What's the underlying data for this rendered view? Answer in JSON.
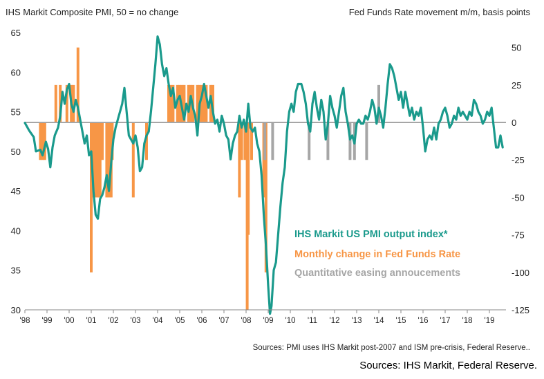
{
  "chart_data": {
    "type": "line",
    "left_axis_title": "IHS Markit  Composite PMI, 50 = no change",
    "right_axis_title": "Fed Funds Rate movement m/m, basis points",
    "left_ylim": [
      30,
      65
    ],
    "left_ticks": [
      "65",
      "60",
      "55",
      "50",
      "45",
      "40",
      "35",
      "30"
    ],
    "right_ylim": [
      -125,
      60
    ],
    "right_ticks": [
      "50",
      "25",
      "0",
      "-25",
      "-50",
      "-75",
      "-100",
      "-125"
    ],
    "x_ticks": [
      "'98",
      "'99",
      "'00",
      "'01",
      "'02",
      "'03",
      "'04",
      "'05",
      "'06",
      "'07",
      "'08",
      "'09",
      "'10",
      "'11",
      "'12",
      "'13",
      "'14",
      "'15",
      "'16",
      "'17",
      "'18",
      "'19"
    ],
    "xlim": [
      1998,
      2019.75
    ],
    "colors": {
      "pmi": "#1a9a8c",
      "fed": "#f79646",
      "qe": "#a6a6a6",
      "zero": "#a6a6a6"
    },
    "legend": [
      {
        "label": "IHS Markit US PMI  output  index*",
        "color": "#1a9a8c"
      },
      {
        "label": "Monthly change in Fed Funds Rate",
        "color": "#f79646"
      },
      {
        "label": "Quantitative easing annoucements",
        "color": "#a6a6a6"
      }
    ],
    "series": [
      {
        "name": "IHS Markit US PMI  output  index*",
        "axis": "left",
        "points": [
          [
            1998.0,
            53.6
          ],
          [
            1998.2,
            52.6
          ],
          [
            1998.4,
            51.8
          ],
          [
            1998.5,
            50.0
          ],
          [
            1998.7,
            50.2
          ],
          [
            1998.8,
            49.5
          ],
          [
            1998.95,
            51.2
          ],
          [
            1999.05,
            50.3
          ],
          [
            1999.15,
            48.0
          ],
          [
            1999.25,
            50.5
          ],
          [
            1999.35,
            52.0
          ],
          [
            1999.5,
            53.0
          ],
          [
            1999.6,
            54.5
          ],
          [
            1999.7,
            57.5
          ],
          [
            1999.8,
            56.0
          ],
          [
            1999.9,
            57.8
          ],
          [
            2000.0,
            58.5
          ],
          [
            2000.1,
            56.0
          ],
          [
            2000.2,
            55.0
          ],
          [
            2000.3,
            56.5
          ],
          [
            2000.4,
            55.5
          ],
          [
            2000.5,
            54.0
          ],
          [
            2000.6,
            52.5
          ],
          [
            2000.7,
            51.0
          ],
          [
            2000.8,
            52.0
          ],
          [
            2000.9,
            49.5
          ],
          [
            2001.0,
            50.0
          ],
          [
            2001.1,
            45.0
          ],
          [
            2001.2,
            42.0
          ],
          [
            2001.3,
            41.5
          ],
          [
            2001.4,
            44.0
          ],
          [
            2001.5,
            44.5
          ],
          [
            2001.6,
            45.5
          ],
          [
            2001.7,
            47.0
          ],
          [
            2001.8,
            45.0
          ],
          [
            2001.9,
            48.5
          ],
          [
            2002.0,
            51.5
          ],
          [
            2002.1,
            53.0
          ],
          [
            2002.2,
            54.0
          ],
          [
            2002.3,
            55.0
          ],
          [
            2002.4,
            56.0
          ],
          [
            2002.5,
            58.0
          ],
          [
            2002.6,
            55.0
          ],
          [
            2002.7,
            52.0
          ],
          [
            2002.8,
            51.5
          ],
          [
            2002.9,
            51.0
          ],
          [
            2003.0,
            52.0
          ],
          [
            2003.1,
            50.5
          ],
          [
            2003.2,
            47.5
          ],
          [
            2003.3,
            48.0
          ],
          [
            2003.4,
            51.0
          ],
          [
            2003.5,
            52.0
          ],
          [
            2003.6,
            52.5
          ],
          [
            2003.7,
            55.0
          ],
          [
            2003.8,
            58.0
          ],
          [
            2003.9,
            61.0
          ],
          [
            2004.0,
            64.5
          ],
          [
            2004.1,
            63.5
          ],
          [
            2004.2,
            61.0
          ],
          [
            2004.3,
            59.5
          ],
          [
            2004.4,
            60.5
          ],
          [
            2004.5,
            58.5
          ],
          [
            2004.6,
            57.0
          ],
          [
            2004.7,
            58.0
          ],
          [
            2004.8,
            55.5
          ],
          [
            2004.9,
            56.5
          ],
          [
            2005.0,
            57.0
          ],
          [
            2005.1,
            55.5
          ],
          [
            2005.2,
            54.0
          ],
          [
            2005.3,
            56.0
          ],
          [
            2005.4,
            55.0
          ],
          [
            2005.5,
            57.0
          ],
          [
            2005.6,
            55.5
          ],
          [
            2005.7,
            54.5
          ],
          [
            2005.8,
            52.0
          ],
          [
            2005.9,
            56.0
          ],
          [
            2006.0,
            57.0
          ],
          [
            2006.1,
            58.5
          ],
          [
            2006.2,
            57.0
          ],
          [
            2006.3,
            55.5
          ],
          [
            2006.4,
            57.0
          ],
          [
            2006.5,
            55.0
          ],
          [
            2006.6,
            53.5
          ],
          [
            2006.7,
            54.0
          ],
          [
            2006.8,
            52.5
          ],
          [
            2006.9,
            54.5
          ],
          [
            2007.0,
            53.5
          ],
          [
            2007.1,
            52.0
          ],
          [
            2007.2,
            51.5
          ],
          [
            2007.3,
            49.0
          ],
          [
            2007.4,
            51.0
          ],
          [
            2007.5,
            52.0
          ],
          [
            2007.6,
            52.5
          ],
          [
            2007.7,
            54.5
          ],
          [
            2007.8,
            53.0
          ],
          [
            2007.9,
            54.0
          ],
          [
            2008.0,
            52.5
          ],
          [
            2008.1,
            56.0
          ],
          [
            2008.2,
            53.0
          ],
          [
            2008.3,
            52.5
          ],
          [
            2008.4,
            53.0
          ],
          [
            2008.5,
            51.0
          ],
          [
            2008.6,
            50.0
          ],
          [
            2008.7,
            47.0
          ],
          [
            2008.8,
            42.0
          ],
          [
            2008.9,
            38.0
          ],
          [
            2009.0,
            33.0
          ],
          [
            2009.08,
            29.5
          ],
          [
            2009.15,
            30.5
          ],
          [
            2009.25,
            35.0
          ],
          [
            2009.35,
            36.0
          ],
          [
            2009.45,
            39.5
          ],
          [
            2009.55,
            43.0
          ],
          [
            2009.65,
            46.0
          ],
          [
            2009.75,
            48.0
          ],
          [
            2009.85,
            52.5
          ],
          [
            2009.95,
            55.0
          ],
          [
            2010.05,
            56.0
          ],
          [
            2010.15,
            55.0
          ],
          [
            2010.25,
            57.5
          ],
          [
            2010.35,
            58.5
          ],
          [
            2010.5,
            58.5
          ],
          [
            2010.6,
            57.5
          ],
          [
            2010.7,
            56.0
          ],
          [
            2010.8,
            53.5
          ],
          [
            2010.9,
            52.5
          ],
          [
            2011.0,
            56.0
          ],
          [
            2011.1,
            57.5
          ],
          [
            2011.2,
            55.5
          ],
          [
            2011.3,
            54.0
          ],
          [
            2011.4,
            56.5
          ],
          [
            2011.5,
            55.0
          ],
          [
            2011.6,
            51.5
          ],
          [
            2011.7,
            53.5
          ],
          [
            2011.8,
            57.0
          ],
          [
            2011.9,
            55.5
          ],
          [
            2012.0,
            54.5
          ],
          [
            2012.1,
            53.0
          ],
          [
            2012.2,
            55.0
          ],
          [
            2012.3,
            57.0
          ],
          [
            2012.4,
            58.0
          ],
          [
            2012.5,
            55.0
          ],
          [
            2012.6,
            53.5
          ],
          [
            2012.7,
            51.5
          ],
          [
            2012.8,
            52.0
          ],
          [
            2012.9,
            51.0
          ],
          [
            2013.0,
            53.5
          ],
          [
            2013.1,
            54.0
          ],
          [
            2013.2,
            53.5
          ],
          [
            2013.3,
            53.5
          ],
          [
            2013.4,
            54.5
          ],
          [
            2013.5,
            54.0
          ],
          [
            2013.6,
            55.0
          ],
          [
            2013.7,
            56.5
          ],
          [
            2013.8,
            55.5
          ],
          [
            2013.9,
            53.5
          ],
          [
            2014.0,
            55.5
          ],
          [
            2014.1,
            54.5
          ],
          [
            2014.2,
            53.0
          ],
          [
            2014.3,
            55.5
          ],
          [
            2014.4,
            58.5
          ],
          [
            2014.5,
            61.0
          ],
          [
            2014.6,
            60.5
          ],
          [
            2014.7,
            59.5
          ],
          [
            2014.8,
            58.0
          ],
          [
            2014.9,
            56.5
          ],
          [
            2015.0,
            57.5
          ],
          [
            2015.1,
            55.5
          ],
          [
            2015.2,
            57.5
          ],
          [
            2015.3,
            56.0
          ],
          [
            2015.4,
            54.5
          ],
          [
            2015.5,
            55.5
          ],
          [
            2015.6,
            54.0
          ],
          [
            2015.7,
            55.0
          ],
          [
            2015.8,
            54.5
          ],
          [
            2015.9,
            55.5
          ],
          [
            2016.0,
            53.0
          ],
          [
            2016.1,
            50.0
          ],
          [
            2016.2,
            51.5
          ],
          [
            2016.3,
            52.0
          ],
          [
            2016.4,
            51.5
          ],
          [
            2016.5,
            53.0
          ],
          [
            2016.6,
            51.5
          ],
          [
            2016.7,
            53.5
          ],
          [
            2016.8,
            54.0
          ],
          [
            2016.9,
            55.0
          ],
          [
            2017.0,
            55.5
          ],
          [
            2017.1,
            54.5
          ],
          [
            2017.2,
            53.0
          ],
          [
            2017.3,
            53.5
          ],
          [
            2017.4,
            54.5
          ],
          [
            2017.5,
            54.0
          ],
          [
            2017.6,
            55.5
          ],
          [
            2017.7,
            54.5
          ],
          [
            2017.8,
            55.0
          ],
          [
            2017.9,
            54.5
          ],
          [
            2018.0,
            54.0
          ],
          [
            2018.1,
            55.0
          ],
          [
            2018.2,
            54.5
          ],
          [
            2018.3,
            56.5
          ],
          [
            2018.4,
            56.0
          ],
          [
            2018.5,
            55.0
          ],
          [
            2018.6,
            54.5
          ],
          [
            2018.7,
            53.5
          ],
          [
            2018.8,
            54.0
          ],
          [
            2018.9,
            55.0
          ],
          [
            2019.0,
            54.5
          ],
          [
            2019.1,
            55.5
          ],
          [
            2019.2,
            53.0
          ],
          [
            2019.3,
            50.5
          ],
          [
            2019.4,
            50.5
          ],
          [
            2019.5,
            52.0
          ],
          [
            2019.6,
            50.5
          ]
        ]
      },
      {
        "name": "Monthly change in Fed Funds Rate",
        "axis": "right",
        "kind": "bars",
        "points": [
          [
            1998.7,
            -25
          ],
          [
            1998.8,
            -25
          ],
          [
            1998.9,
            -25
          ],
          [
            1999.4,
            25
          ],
          [
            1999.6,
            25
          ],
          [
            1999.9,
            25
          ],
          [
            2000.1,
            25
          ],
          [
            2000.2,
            25
          ],
          [
            2000.4,
            50
          ],
          [
            2001.0,
            -100
          ],
          [
            2001.1,
            -50
          ],
          [
            2001.2,
            -50
          ],
          [
            2001.3,
            -50
          ],
          [
            2001.35,
            -50
          ],
          [
            2001.4,
            -50
          ],
          [
            2001.5,
            -25
          ],
          [
            2001.7,
            -50
          ],
          [
            2001.8,
            -50
          ],
          [
            2001.9,
            -50
          ],
          [
            2001.95,
            -25
          ],
          [
            2002.9,
            -50
          ],
          [
            2003.5,
            -25
          ],
          [
            2004.5,
            25
          ],
          [
            2004.6,
            25
          ],
          [
            2004.7,
            25
          ],
          [
            2004.9,
            25
          ],
          [
            2005.0,
            25
          ],
          [
            2005.1,
            25
          ],
          [
            2005.2,
            25
          ],
          [
            2005.4,
            25
          ],
          [
            2005.5,
            25
          ],
          [
            2005.6,
            25
          ],
          [
            2005.8,
            25
          ],
          [
            2005.9,
            25
          ],
          [
            2006.0,
            25
          ],
          [
            2006.1,
            25
          ],
          [
            2006.2,
            25
          ],
          [
            2006.4,
            25
          ],
          [
            2006.5,
            25
          ],
          [
            2007.7,
            -50
          ],
          [
            2007.8,
            -25
          ],
          [
            2007.95,
            -25
          ],
          [
            2008.05,
            -125
          ],
          [
            2008.1,
            -75
          ],
          [
            2008.25,
            -25
          ],
          [
            2008.8,
            -50
          ],
          [
            2008.9,
            -100
          ]
        ]
      },
      {
        "name": "Quantitative easing annoucements",
        "axis": "right",
        "kind": "bars",
        "points": [
          [
            2008.85,
            -25
          ],
          [
            2009.2,
            -25
          ],
          [
            2010.85,
            -25
          ],
          [
            2011.7,
            -25
          ],
          [
            2012.7,
            -25
          ],
          [
            2012.9,
            -25
          ],
          [
            2013.45,
            -25
          ],
          [
            2014.0,
            25
          ]
        ]
      }
    ]
  },
  "footer": {
    "chart_source": "Sources: PMI uses IHS Markit post-2007  and  ISM pre-crisis, Federal Reserve..",
    "caption": "Sources: IHS Markit, Federal Reserve."
  }
}
